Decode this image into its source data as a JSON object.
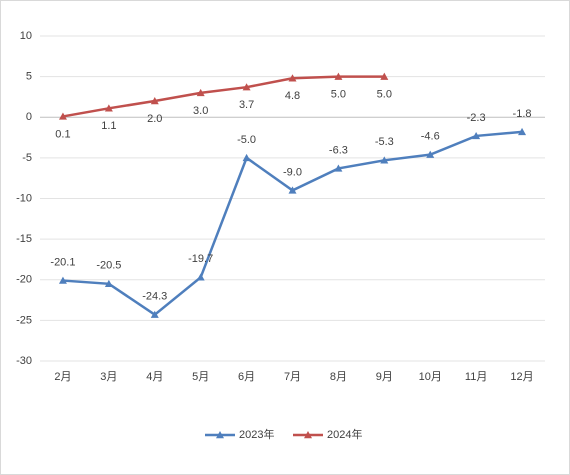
{
  "chart_data": {
    "type": "line",
    "categories": [
      "2月",
      "3月",
      "4月",
      "5月",
      "6月",
      "7月",
      "8月",
      "9月",
      "10月",
      "11月",
      "12月"
    ],
    "series": [
      {
        "name": "2023年",
        "color": "#4f7fbd",
        "values": [
          -20.1,
          -20.5,
          -24.3,
          -19.7,
          -5.0,
          -9.0,
          -6.3,
          -5.3,
          -4.6,
          -2.3,
          -1.8
        ],
        "value_labels": [
          "-20.1",
          "-20.5",
          "-24.3",
          "-19.7",
          "-5.0",
          "-9.0",
          "-6.3",
          "-5.3",
          "-4.6",
          "-2.3",
          "-1.8"
        ]
      },
      {
        "name": "2024年",
        "color": "#c0504d",
        "values": [
          0.1,
          1.1,
          2.0,
          3.0,
          3.7,
          4.8,
          5.0,
          5.0,
          null,
          null,
          null
        ],
        "value_labels": [
          "0.1",
          "1.1",
          "2.0",
          "3.0",
          "3.7",
          "4.8",
          "5.0",
          "5.0",
          null,
          null,
          null
        ]
      }
    ],
    "ylim": [
      -30,
      10
    ],
    "yticks": [
      -30,
      -25,
      -20,
      -15,
      -10,
      -5,
      0,
      5,
      10
    ],
    "grid": true,
    "legend": "bottom"
  }
}
